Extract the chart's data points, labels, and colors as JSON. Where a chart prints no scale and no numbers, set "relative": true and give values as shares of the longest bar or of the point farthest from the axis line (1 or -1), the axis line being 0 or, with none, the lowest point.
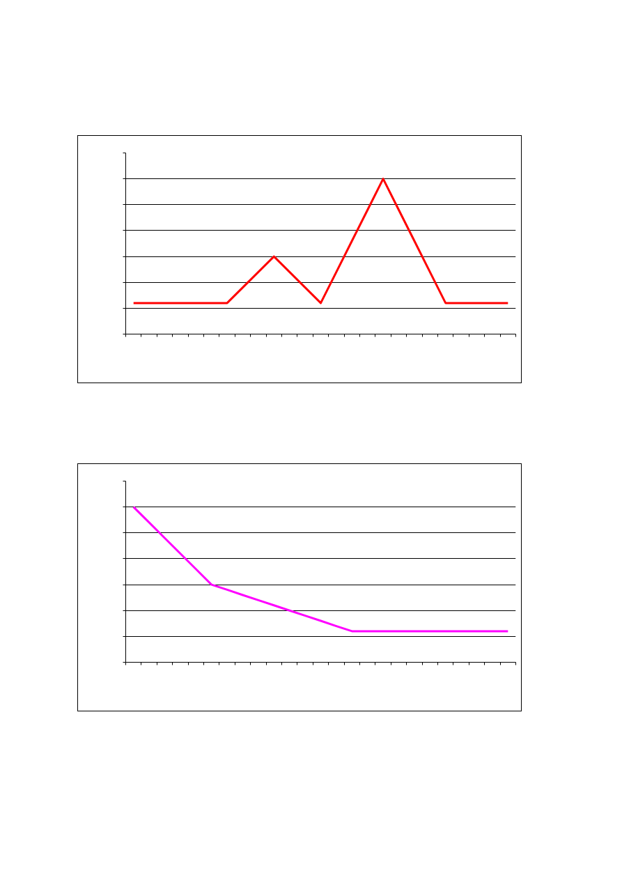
{
  "chart_data": [
    {
      "type": "line",
      "relative": true,
      "grid": "y",
      "tick_labels": false,
      "categories": [
        null,
        null,
        null,
        null,
        null,
        null,
        null,
        null,
        null,
        null,
        null,
        null,
        null,
        null,
        null,
        null,
        null,
        null,
        null,
        null,
        null,
        null,
        null,
        null,
        null
      ],
      "series": [
        {
          "color": "#ff0000",
          "values": [
            0.2,
            0.2,
            0.2,
            0.2,
            0.2,
            0.2,
            0.2,
            0.3,
            0.4,
            0.5,
            0.4,
            0.3,
            0.2,
            0.4,
            0.6,
            0.8,
            1,
            0.8,
            0.6,
            0.4,
            0.2,
            0.2,
            0.2,
            0.2,
            0.2
          ]
        }
      ]
    },
    {
      "type": "line",
      "relative": true,
      "grid": "y",
      "tick_labels": false,
      "categories": [
        null,
        null,
        null,
        null,
        null,
        null,
        null,
        null,
        null,
        null,
        null,
        null,
        null,
        null,
        null,
        null,
        null,
        null,
        null,
        null,
        null,
        null,
        null,
        null,
        null
      ],
      "series": [
        {
          "color": "#ff00ff",
          "values": [
            1,
            0.9,
            0.8,
            0.7,
            0.6,
            0.5,
            0.467,
            0.433,
            0.4,
            0.367,
            0.333,
            0.3,
            0.267,
            0.233,
            0.2,
            0.2,
            0.2,
            0.2,
            0.2,
            0.2,
            0.2,
            0.2,
            0.2,
            0.2,
            0.2
          ]
        }
      ]
    }
  ]
}
